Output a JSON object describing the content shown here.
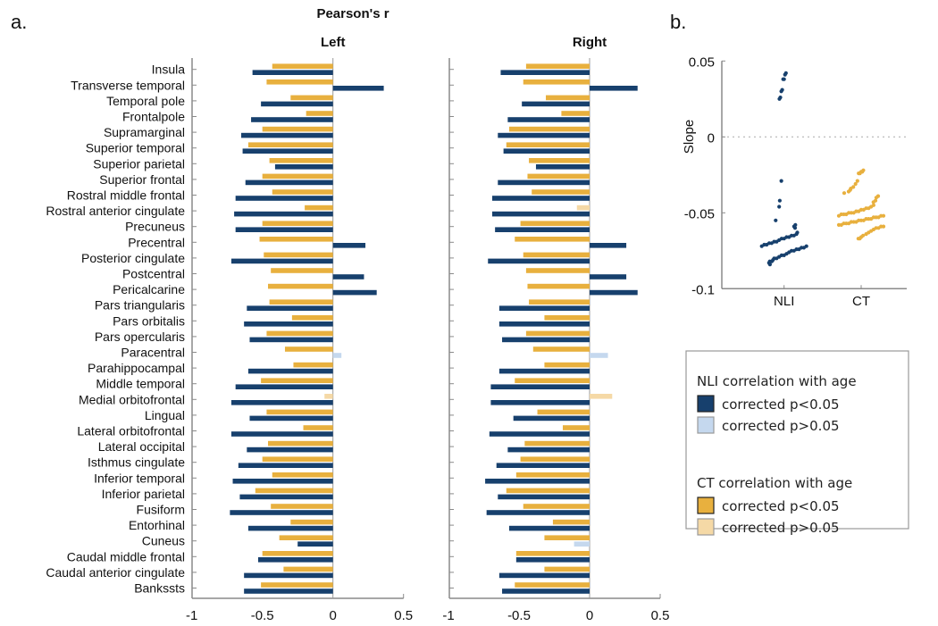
{
  "chart_data": [
    {
      "type": "bar",
      "orientation": "horizontal",
      "panel_label": "a.",
      "title": "Pearson's r",
      "xlim": [
        -1,
        0.5
      ],
      "xticks": [
        "-1",
        "-0.5",
        "0",
        "0.5"
      ],
      "categories": [
        "Insula",
        "Transverse temporal",
        "Temporal pole",
        "Frontalpole",
        "Supramarginal",
        "Superior temporal",
        "Superior parietal",
        "Superior frontal",
        "Rostral middle frontal",
        "Rostral anterior cingulate",
        "Precuneus",
        "Precentral",
        "Posterior cingulate",
        "Postcentral",
        "Pericalcarine",
        "Pars triangularis",
        "Pars orbitalis",
        "Pars opercularis",
        "Paracentral",
        "Parahippocampal",
        "Middle temporal",
        "Medial orbitofrontal",
        "Lingual",
        "Lateral orbitofrontal",
        "Lateral occipital",
        "Isthmus cingulate",
        "Inferior temporal",
        "Inferior parietal",
        "Fusiform",
        "Entorhinal",
        "Cuneus",
        "Caudal middle frontal",
        "Caudal anterior cingulate",
        "Bankssts"
      ],
      "subplots": [
        {
          "title": "Left",
          "series": [
            {
              "name": "CT",
              "values": [
                -0.43,
                -0.47,
                -0.3,
                -0.19,
                -0.5,
                -0.6,
                -0.45,
                -0.5,
                -0.43,
                -0.2,
                -0.5,
                -0.52,
                -0.49,
                -0.44,
                -0.46,
                -0.45,
                -0.29,
                -0.47,
                -0.34,
                -0.28,
                -0.51,
                -0.06,
                -0.47,
                -0.21,
                -0.46,
                -0.5,
                -0.43,
                -0.55,
                -0.44,
                -0.3,
                -0.38,
                -0.5,
                -0.35,
                -0.51
              ],
              "nonsignificant": [
                "Medial orbitofrontal"
              ]
            },
            {
              "name": "NLI",
              "values": [
                -0.57,
                0.36,
                -0.51,
                -0.58,
                -0.65,
                -0.64,
                -0.41,
                -0.62,
                -0.69,
                -0.7,
                -0.69,
                0.23,
                -0.72,
                0.22,
                0.31,
                -0.61,
                -0.63,
                -0.59,
                0.06,
                -0.6,
                -0.69,
                -0.72,
                -0.59,
                -0.72,
                -0.61,
                -0.67,
                -0.71,
                -0.66,
                -0.73,
                -0.6,
                -0.25,
                -0.53,
                -0.63,
                -0.63
              ],
              "nonsignificant": [
                "Paracentral"
              ]
            }
          ]
        },
        {
          "title": "Right",
          "series": [
            {
              "name": "CT",
              "values": [
                -0.45,
                -0.47,
                -0.31,
                -0.2,
                -0.57,
                -0.59,
                -0.43,
                -0.44,
                -0.41,
                -0.09,
                -0.49,
                -0.53,
                -0.47,
                -0.45,
                -0.44,
                -0.43,
                -0.32,
                -0.45,
                -0.4,
                -0.32,
                -0.53,
                0.16,
                -0.37,
                -0.19,
                -0.46,
                -0.49,
                -0.52,
                -0.59,
                -0.47,
                -0.26,
                -0.32,
                -0.52,
                -0.32,
                -0.53
              ],
              "nonsignificant": [
                "Rostral anterior cingulate",
                "Medial orbitofrontal"
              ]
            },
            {
              "name": "NLI",
              "values": [
                -0.63,
                0.34,
                -0.48,
                -0.58,
                -0.65,
                -0.61,
                -0.38,
                -0.65,
                -0.69,
                -0.69,
                -0.67,
                0.26,
                -0.72,
                0.26,
                0.34,
                -0.64,
                -0.64,
                -0.62,
                0.13,
                -0.64,
                -0.7,
                -0.7,
                -0.54,
                -0.71,
                -0.58,
                -0.66,
                -0.74,
                -0.65,
                -0.73,
                -0.57,
                -0.11,
                -0.52,
                -0.64,
                -0.62
              ],
              "nonsignificant": [
                "Paracentral",
                "Cuneus"
              ]
            }
          ]
        }
      ]
    },
    {
      "type": "scatter",
      "panel_label": "b.",
      "ylabel": "Slope",
      "ylim": [
        -0.1,
        0.05
      ],
      "yticks": [
        "0.05",
        "0",
        "-0.05",
        "-0.1"
      ],
      "categories": [
        "NLI",
        "CT"
      ],
      "reference_line": 0,
      "series": [
        {
          "name": "NLI",
          "values": [
            0.042,
            0.041,
            0.038,
            0.038,
            0.031,
            0.03,
            0.026,
            0.025,
            -0.029,
            -0.042,
            -0.046,
            -0.055,
            -0.058,
            -0.059,
            -0.06,
            -0.063,
            -0.064,
            -0.065,
            -0.065,
            -0.066,
            -0.066,
            -0.067,
            -0.067,
            -0.068,
            -0.069,
            -0.069,
            -0.07,
            -0.07,
            -0.071,
            -0.071,
            -0.072,
            -0.072,
            -0.073,
            -0.073,
            -0.074,
            -0.074,
            -0.075,
            -0.075,
            -0.076,
            -0.077,
            -0.078,
            -0.078,
            -0.079,
            -0.08,
            -0.08,
            -0.081,
            -0.082,
            -0.082,
            -0.083,
            -0.084
          ]
        },
        {
          "name": "CT",
          "values": [
            -0.022,
            -0.023,
            -0.023,
            -0.024,
            -0.024,
            -0.029,
            -0.031,
            -0.033,
            -0.034,
            -0.035,
            -0.036,
            -0.037,
            -0.039,
            -0.04,
            -0.042,
            -0.043,
            -0.045,
            -0.046,
            -0.047,
            -0.047,
            -0.048,
            -0.048,
            -0.049,
            -0.049,
            -0.05,
            -0.05,
            -0.05,
            -0.051,
            -0.051,
            -0.051,
            -0.052,
            -0.052,
            -0.052,
            -0.053,
            -0.053,
            -0.053,
            -0.054,
            -0.054,
            -0.054,
            -0.055,
            -0.055,
            -0.055,
            -0.056,
            -0.056,
            -0.056,
            -0.057,
            -0.057,
            -0.057,
            -0.058,
            -0.058,
            -0.059,
            -0.059,
            -0.06,
            -0.06,
            -0.061,
            -0.062,
            -0.063,
            -0.064,
            -0.065,
            -0.066,
            -0.067,
            -0.067
          ]
        }
      ]
    }
  ],
  "legend": {
    "groups": [
      {
        "title": "NLI correlation with age",
        "items": [
          {
            "label": "corrected p<0.05",
            "color": "#17406d"
          },
          {
            "label": "corrected p>0.05",
            "color": "#c5d8ee"
          }
        ]
      },
      {
        "title": "CT correlation with age",
        "items": [
          {
            "label": "corrected p<0.05",
            "color": "#e8b03e"
          },
          {
            "label": "corrected p>0.05",
            "color": "#f5d9a6"
          }
        ]
      }
    ]
  },
  "colors": {
    "NLI": "#17406d",
    "NLI_ns": "#c5d8ee",
    "CT": "#e8b03e",
    "CT_ns": "#f5d9a6",
    "axis": "#8a8a8a"
  }
}
